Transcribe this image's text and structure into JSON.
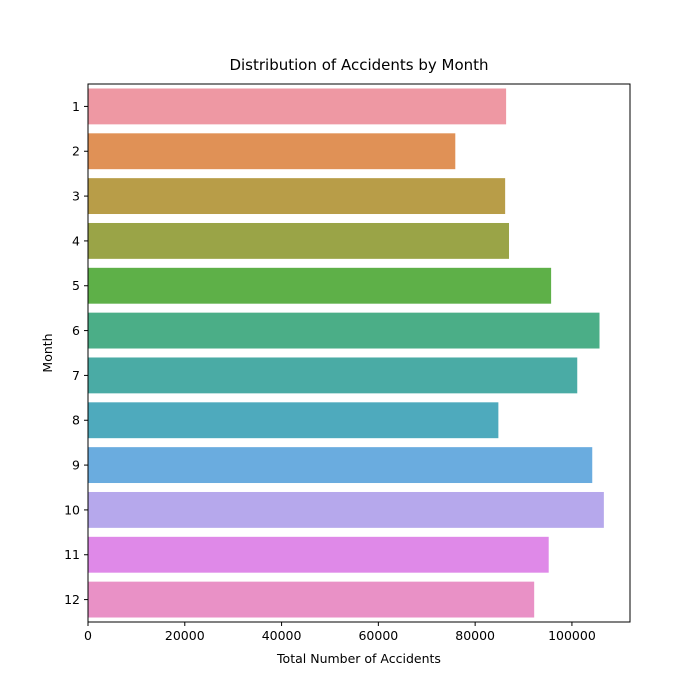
{
  "chart_data": {
    "type": "bar",
    "orientation": "horizontal",
    "title": "Distribution of Accidents by Month",
    "xlabel": "Total Number of Accidents",
    "ylabel": "Month",
    "categories": [
      "1",
      "2",
      "3",
      "4",
      "5",
      "6",
      "7",
      "8",
      "9",
      "10",
      "11",
      "12"
    ],
    "values": [
      86400,
      75900,
      86200,
      87000,
      95700,
      105700,
      101100,
      84800,
      104200,
      106600,
      95200,
      92200
    ],
    "colors": [
      "#ee98a3",
      "#e09156",
      "#b89d48",
      "#9aa447",
      "#5eb048",
      "#4bae87",
      "#4aaba5",
      "#4eaabd",
      "#6aacdf",
      "#b6a8ec",
      "#df89e8",
      "#e991c6"
    ],
    "xlim": [
      0,
      112000
    ],
    "xticks": [
      0,
      20000,
      40000,
      60000,
      80000,
      100000
    ],
    "grid": false
  }
}
